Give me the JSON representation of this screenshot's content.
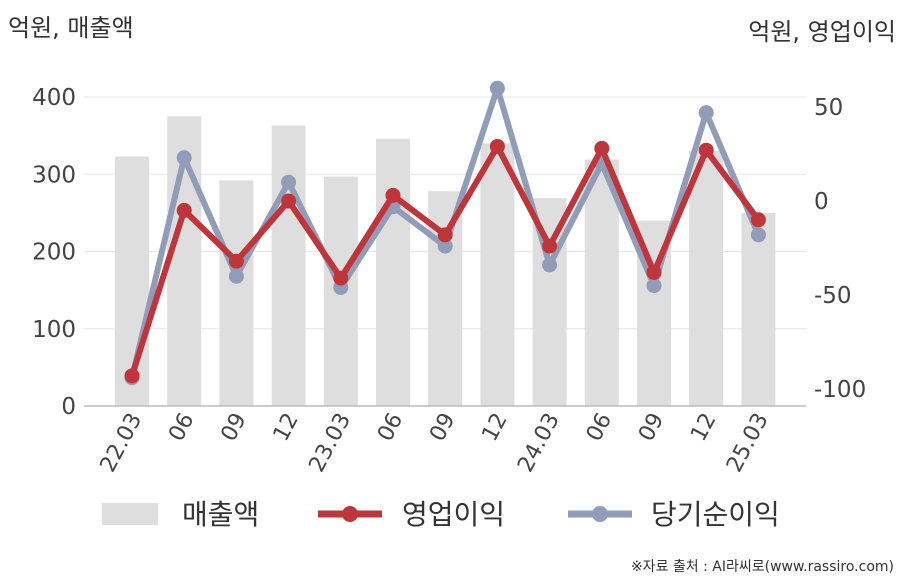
{
  "chart_data": {
    "type": "bar+line",
    "left_unit": "억원, 매출액",
    "right_unit": "억원, 영업이익",
    "categories": [
      "22.03",
      "06",
      "09",
      "12",
      "23.03",
      "06",
      "09",
      "12",
      "24.03",
      "06",
      "09",
      "12",
      "25.03"
    ],
    "left_axis": {
      "ylim": [
        0,
        400
      ],
      "ticks": [
        0,
        100,
        200,
        300,
        400
      ]
    },
    "right_axis": {
      "ylim": [
        -105,
        60
      ],
      "ticks": [
        -100,
        -50,
        0,
        50
      ]
    },
    "series": [
      {
        "name": "매출액",
        "kind": "bar",
        "axis": "left",
        "color": "#dedede",
        "values": [
          323,
          375,
          292,
          363,
          297,
          346,
          278,
          340,
          269,
          319,
          240,
          330,
          250
        ]
      },
      {
        "name": "영업이익",
        "kind": "line",
        "axis": "right",
        "color": "#c0353a",
        "values": [
          -93,
          -5,
          -32,
          0,
          -41,
          3,
          -18,
          29,
          -24,
          28,
          -38,
          27,
          -10
        ]
      },
      {
        "name": "당기순이익",
        "kind": "line",
        "axis": "right",
        "color": "#909cb8",
        "values": [
          -94,
          23,
          -40,
          10,
          -46,
          -3,
          -24,
          60,
          -34,
          20,
          -45,
          47,
          -18
        ]
      }
    ],
    "grid": true,
    "legend": "bottom"
  },
  "source": "※자료 출처 : AI라씨로(www.rassiro.com)"
}
